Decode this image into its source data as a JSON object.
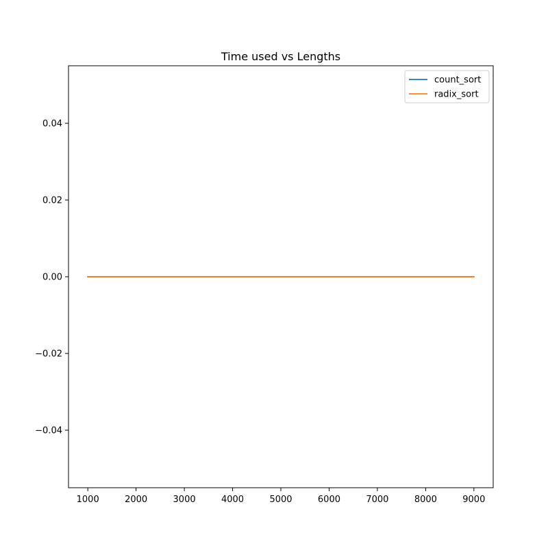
{
  "chart_data": {
    "type": "line",
    "title": "Time used vs Lengths",
    "xlabel": "",
    "ylabel": "",
    "x": [
      1000,
      2000,
      3000,
      4000,
      5000,
      6000,
      7000,
      8000,
      9000
    ],
    "xlim": [
      600,
      9400
    ],
    "ylim": [
      -0.055,
      0.055
    ],
    "xticks": [
      1000,
      2000,
      3000,
      4000,
      5000,
      6000,
      7000,
      8000,
      9000
    ],
    "yticks": [
      -0.04,
      -0.02,
      0.0,
      0.02,
      0.04
    ],
    "xtick_labels": [
      "1000",
      "2000",
      "3000",
      "4000",
      "5000",
      "6000",
      "7000",
      "8000",
      "9000"
    ],
    "ytick_labels": [
      "−0.04",
      "−0.02",
      "0.00",
      "0.02",
      "0.04"
    ],
    "grid": false,
    "legend_position": "top-right",
    "series": [
      {
        "name": "count_sort",
        "color": "#1f77b4",
        "values": [
          0,
          0,
          0,
          0,
          0,
          0,
          0,
          0,
          0
        ]
      },
      {
        "name": "radix_sort",
        "color": "#ff7f0e",
        "values": [
          0,
          0,
          0,
          0,
          0,
          0,
          0,
          0,
          0
        ]
      }
    ]
  }
}
